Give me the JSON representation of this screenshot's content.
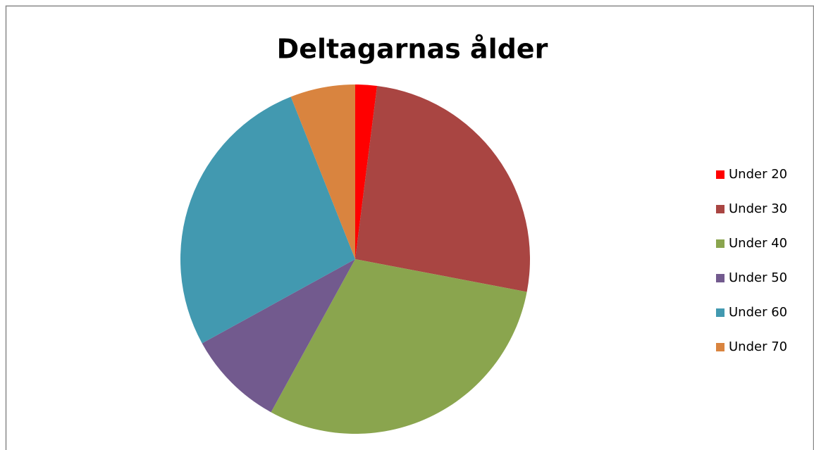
{
  "chart_data": {
    "type": "pie",
    "title": "Deltagarnas ålder",
    "categories": [
      "Under 20",
      "Under 30",
      "Under 40",
      "Under 50",
      "Under 60",
      "Under 70"
    ],
    "values": [
      2,
      26,
      30,
      9,
      27,
      6
    ],
    "colors": [
      "#ff0000",
      "#a94542",
      "#8aa54e",
      "#725a8e",
      "#4299b0",
      "#d9843f"
    ],
    "legend": "right"
  }
}
